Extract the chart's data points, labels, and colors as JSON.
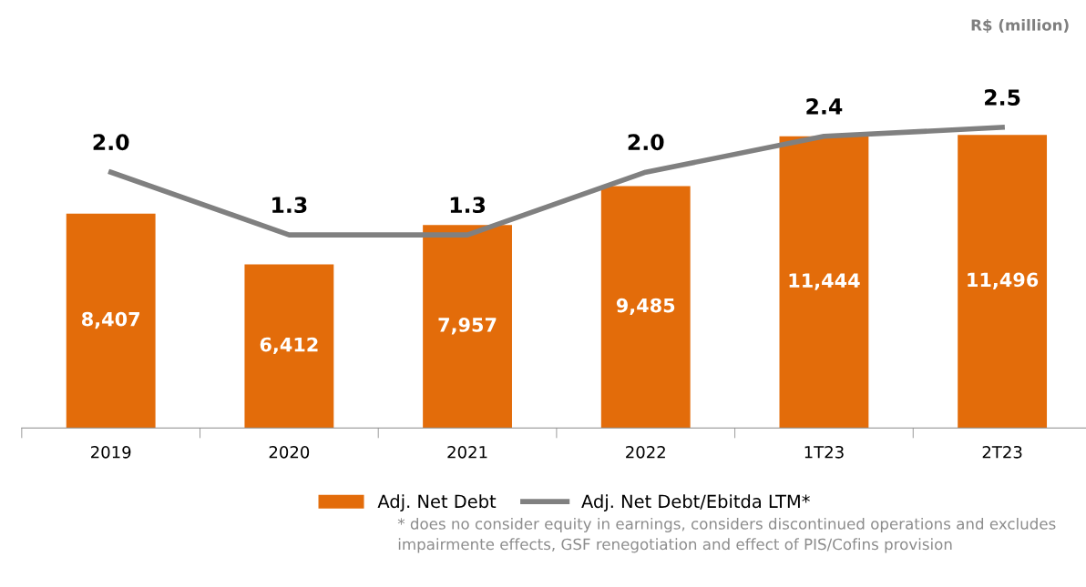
{
  "chart_data": {
    "type": "bar",
    "categories": [
      "2019",
      "2020",
      "2021",
      "2022",
      "1T23",
      "2T23"
    ],
    "series": [
      {
        "name": "Adj. Net Debt",
        "color": "#e36c0a",
        "values": [
          8407,
          6412,
          7957,
          9485,
          11444,
          11496
        ],
        "value_labels": [
          "8,407",
          "6,412",
          "7,957",
          "9,485",
          "11,444",
          "11,496"
        ]
      },
      {
        "name": "Adj. Net Debt/Ebitda LTM*",
        "type": "line",
        "axis": "y2",
        "color": "#808080",
        "values": [
          2.0,
          1.3,
          1.3,
          2.0,
          2.4,
          2.5
        ],
        "value_labels": [
          "2.0",
          "1.3",
          "1.3",
          "2.0",
          "2.4",
          "2.5"
        ]
      }
    ],
    "legend": "bottom",
    "grid": false,
    "marker": "none",
    "line_style": "solid",
    "tick_labels": "x",
    "annotations": [
      "R$ (million)",
      "* does no consider equity in earnings, considers discontinued operations and excludes impairmente effects, GSF renegotiation and effect of PIS/Cofins provision"
    ]
  }
}
